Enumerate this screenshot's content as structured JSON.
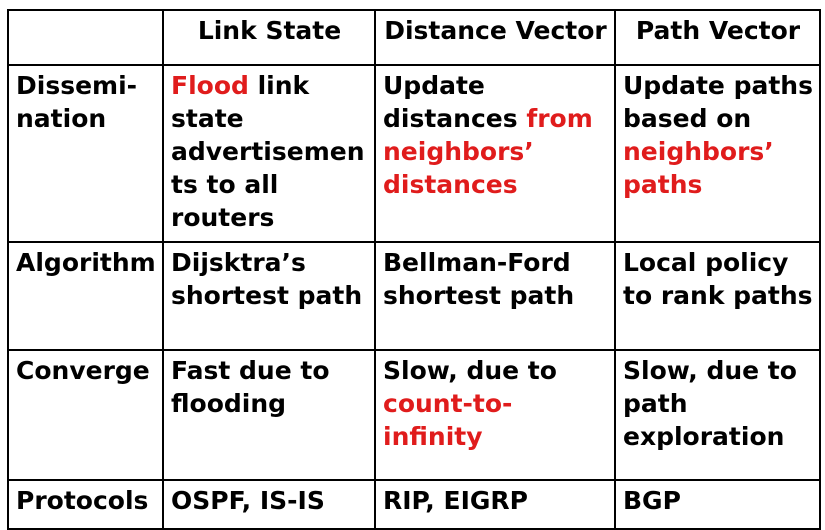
{
  "columns": [
    "Link State",
    "Distance Vector",
    "Path Vector"
  ],
  "colors": {
    "blue": "#1c1ccc",
    "red": "#e01c1c",
    "black": "#000000",
    "grey": "#404040"
  },
  "rows": {
    "dissemination": {
      "label_line1": "Dissemi-",
      "label_line2": "nation",
      "link_state": {
        "red": "Flood",
        "rest": " link state advertisemen ts to all routers"
      },
      "distance_vector": {
        "black": "Update distances ",
        "red": "from neighbors’ distances"
      },
      "path_vector": {
        "grey": "Update paths based on ",
        "red": "neighbors’ paths"
      }
    },
    "algorithm": {
      "label": "Algorithm",
      "link_state": "Dijsktra’s shortest path",
      "distance_vector": "Bellman-Ford shortest path",
      "path_vector": "Local policy to rank paths"
    },
    "converge": {
      "label": "Converge",
      "link_state": "Fast due to flooding",
      "distance_vector": {
        "black": "Slow, due to ",
        "red": "count-to-infinity"
      },
      "path_vector": "Slow, due to path exploration"
    },
    "protocols": {
      "label": "Protocols",
      "link_state": "OSPF, IS-IS",
      "distance_vector": "RIP, EIGRP",
      "path_vector": "BGP"
    }
  }
}
